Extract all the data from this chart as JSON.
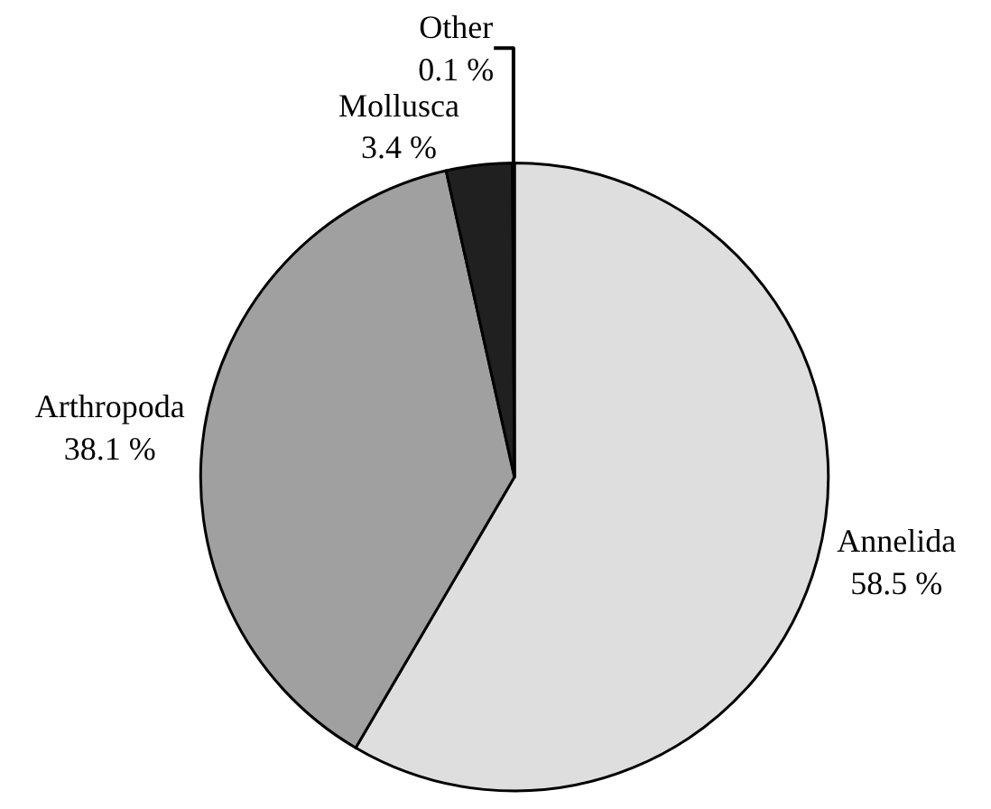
{
  "chart_data": {
    "type": "pie",
    "categories": [
      "Annelida",
      "Arthropoda",
      "Mollusca",
      "Other"
    ],
    "values": [
      58.5,
      38.1,
      3.4,
      0.1
    ],
    "colors": [
      "#dedede",
      "#a0a0a0",
      "#202020",
      "#000000"
    ],
    "value_labels": [
      "58.5 %",
      "38.1 %",
      "3.4 %",
      "0.1 %"
    ],
    "legend": false
  }
}
